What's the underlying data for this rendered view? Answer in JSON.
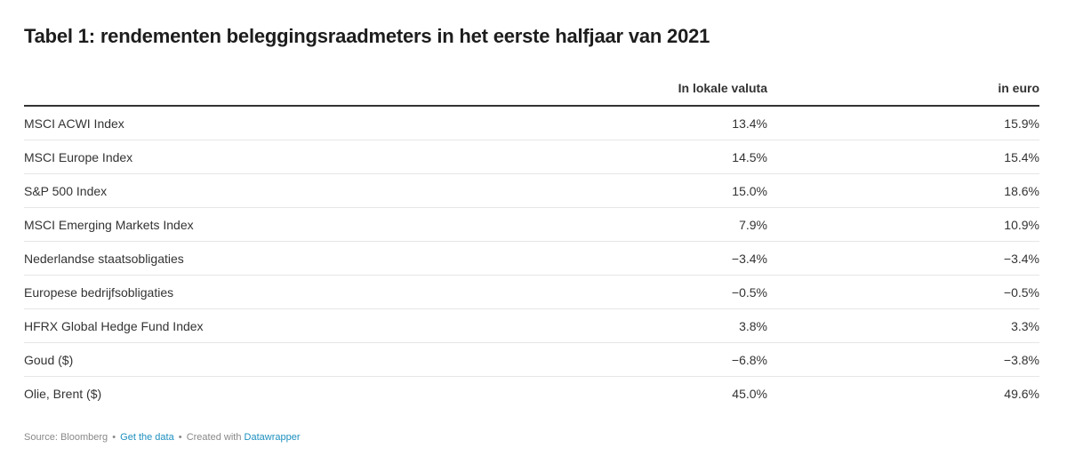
{
  "title": "Tabel 1: rendementen beleggingsraadmeters in het eerste halfjaar van 2021",
  "chart_data": {
    "type": "table",
    "title": "Tabel 1: rendementen beleggingsraadmeters in het eerste halfjaar van 2021",
    "columns": [
      "",
      "In lokale valuta",
      "in euro"
    ],
    "rows": [
      {
        "name": "MSCI ACWI Index",
        "local": "13.4%",
        "euro": "15.9%"
      },
      {
        "name": "MSCI Europe Index",
        "local": "14.5%",
        "euro": "15.4%"
      },
      {
        "name": "S&P 500 Index",
        "local": "15.0%",
        "euro": "18.6%"
      },
      {
        "name": "MSCI Emerging Markets Index",
        "local": "7.9%",
        "euro": "10.9%"
      },
      {
        "name": "Nederlandse staatsobligaties",
        "local": "−3.4%",
        "euro": "−3.4%"
      },
      {
        "name": "Europese bedrijfsobligaties",
        "local": "−0.5%",
        "euro": "−0.5%"
      },
      {
        "name": "HFRX Global Hedge Fund Index",
        "local": "3.8%",
        "euro": "3.3%"
      },
      {
        "name": "Goud ($)",
        "local": "−6.8%",
        "euro": "−3.8%"
      },
      {
        "name": "Olie, Brent ($)",
        "local": "45.0%",
        "euro": "49.6%"
      }
    ]
  },
  "footer": {
    "source": "Source: Bloomberg",
    "separator": "•",
    "get_data": "Get the data",
    "created_with": "Created with",
    "datawrapper": "Datawrapper"
  },
  "colors": {
    "link": "#1d8fbf",
    "text": "#333333",
    "muted": "#888888",
    "rule": "#e6e6e6"
  }
}
